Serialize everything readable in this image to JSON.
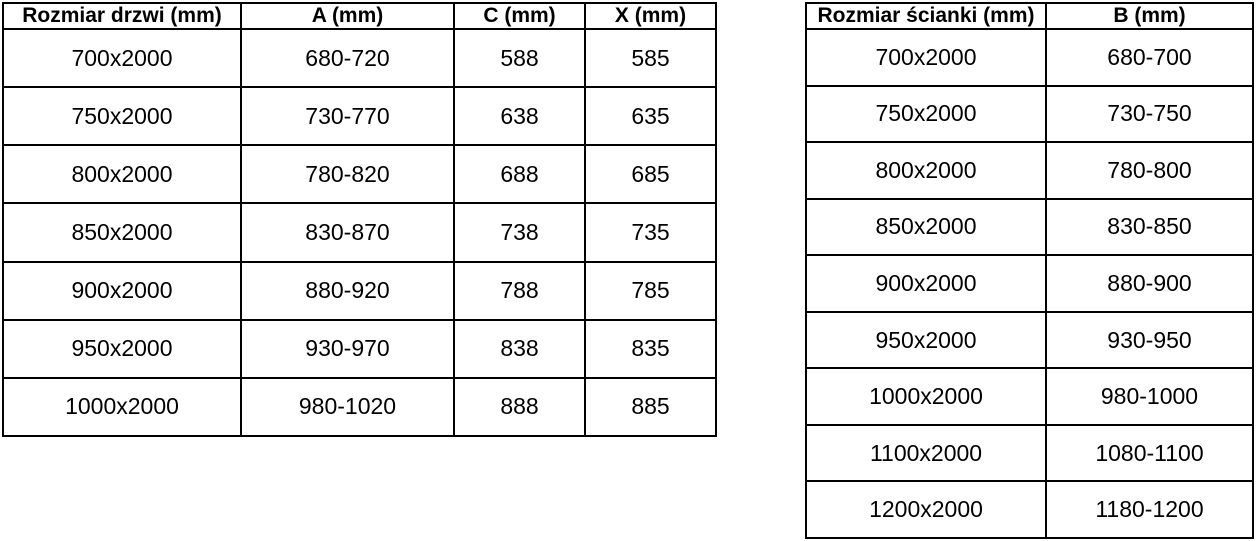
{
  "page": {
    "background_color": "#ffffff",
    "border_color": "#000000",
    "text_color": "#000000"
  },
  "tables": {
    "door": {
      "title": "door-dimensions-table",
      "headers": [
        "Rozmiar drzwi (mm)",
        "A (mm)",
        "C (mm)",
        "X (mm)"
      ],
      "rows": [
        [
          "700x2000",
          "680-720",
          "588",
          "585"
        ],
        [
          "750x2000",
          "730-770",
          "638",
          "635"
        ],
        [
          "800x2000",
          "780-820",
          "688",
          "685"
        ],
        [
          "850x2000",
          "830-870",
          "738",
          "735"
        ],
        [
          "900x2000",
          "880-920",
          "788",
          "785"
        ],
        [
          "950x2000",
          "930-970",
          "838",
          "835"
        ],
        [
          "1000x2000",
          "980-1020",
          "888",
          "885"
        ]
      ]
    },
    "wall": {
      "title": "wall-panel-dimensions-table",
      "headers": [
        "Rozmiar ścianki (mm)",
        "B (mm)"
      ],
      "rows": [
        [
          "700x2000",
          "680-700"
        ],
        [
          "750x2000",
          "730-750"
        ],
        [
          "800x2000",
          "780-800"
        ],
        [
          "850x2000",
          "830-850"
        ],
        [
          "900x2000",
          "880-900"
        ],
        [
          "950x2000",
          "930-950"
        ],
        [
          "1000x2000",
          "980-1000"
        ],
        [
          "1100x2000",
          "1080-1100"
        ],
        [
          "1200x2000",
          "1180-1200"
        ]
      ]
    }
  }
}
